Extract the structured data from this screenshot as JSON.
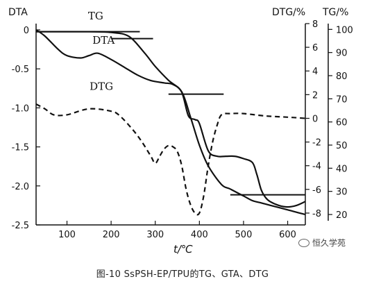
{
  "chart_data": {
    "type": "line",
    "caption": "图-10 SsPSH-EP/TPU的TG、GTA、DTG",
    "watermark": "恒久学苑",
    "xlabel": "t/℃",
    "xlim": [
      30,
      640
    ],
    "xticks": [
      100,
      200,
      300,
      400,
      500,
      600
    ],
    "y_left": {
      "label": "DTA",
      "lim": [
        -2.5,
        0.08
      ],
      "ticks": [
        0,
        -0.5,
        -1.0,
        -1.5,
        -2.0,
        -2.5
      ],
      "tick_labels": [
        "0",
        "-0.5",
        "-1.0",
        "-1.5",
        "-2.0",
        "-2.5"
      ]
    },
    "y_dtg": {
      "label": "DTG/%",
      "lim": [
        -9,
        8
      ],
      "ticks": [
        8,
        6,
        4,
        2,
        0,
        -2,
        -4,
        -6,
        -8
      ],
      "tick_labels": [
        "8",
        "6",
        "4",
        "2",
        "0",
        "-2",
        "-4",
        "-6",
        "-8"
      ]
    },
    "y_tg": {
      "label": "TG/%",
      "lim": [
        15.5,
        102.5
      ],
      "ticks": [
        100,
        90,
        80,
        70,
        60,
        50,
        40,
        30,
        20
      ],
      "tick_labels": [
        "100",
        "90",
        "80",
        "70",
        "60",
        "50",
        "40",
        "30",
        "20"
      ]
    },
    "series": [
      {
        "name": "TG",
        "axis": "tg",
        "style": "solid",
        "x": [
          30,
          150,
          200,
          240,
          275,
          300,
          330,
          360,
          380,
          400,
          420,
          450,
          470,
          500,
          520,
          540,
          560,
          600,
          640
        ],
        "y": [
          99,
          99,
          98.7,
          97,
          90,
          84,
          78,
          73,
          62,
          50,
          41,
          33,
          31,
          28,
          26,
          25,
          24,
          22,
          20
        ]
      },
      {
        "name": "DTA",
        "axis": "left",
        "style": "solid",
        "x": [
          30,
          50,
          80,
          100,
          130,
          150,
          170,
          200,
          230,
          260,
          290,
          320,
          340,
          360,
          375,
          390,
          400,
          420,
          440,
          460,
          480,
          500,
          520,
          530,
          540,
          550,
          560,
          580,
          600,
          620,
          640
        ],
        "y": [
          0,
          -0.08,
          -0.25,
          -0.33,
          -0.36,
          -0.33,
          -0.3,
          -0.38,
          -0.48,
          -0.58,
          -0.65,
          -0.68,
          -0.7,
          -0.8,
          -1.1,
          -1.15,
          -1.2,
          -1.55,
          -1.62,
          -1.62,
          -1.62,
          -1.65,
          -1.7,
          -1.85,
          -2.05,
          -2.15,
          -2.2,
          -2.25,
          -2.27,
          -2.25,
          -2.2
        ]
      },
      {
        "name": "DTG",
        "axis": "dtg",
        "style": "dashed",
        "x": [
          30,
          50,
          70,
          100,
          150,
          200,
          220,
          250,
          270,
          290,
          300,
          310,
          320,
          330,
          340,
          350,
          360,
          370,
          380,
          390,
          400,
          410,
          420,
          430,
          440,
          450,
          470,
          500,
          550,
          600,
          640
        ],
        "y": [
          1.2,
          0.8,
          0.3,
          0.3,
          0.8,
          0.6,
          0.2,
          -1.0,
          -2.0,
          -3.2,
          -3.8,
          -3.2,
          -2.6,
          -2.3,
          -2.4,
          -2.8,
          -4.0,
          -6.0,
          -7.3,
          -8.0,
          -8.0,
          -6.5,
          -4.0,
          -2.0,
          -0.6,
          0.3,
          0.4,
          0.4,
          0.2,
          0.1,
          0.0
        ]
      }
    ],
    "reference_lines": [
      {
        "x1": 30,
        "x2": 265,
        "axis": "tg",
        "y": 99
      },
      {
        "x1": 200,
        "x2": 295,
        "axis": "tg",
        "y": 96
      },
      {
        "x1": 330,
        "x2": 455,
        "axis": "tg",
        "y": 72
      },
      {
        "x1": 470,
        "x2": 640,
        "axis": "tg",
        "y": 28.5
      }
    ],
    "curve_labels": [
      {
        "text": "TG",
        "x": 165,
        "series": "tg",
        "y": 104.3
      },
      {
        "text": "DTA",
        "x": 183,
        "series": "left",
        "y": -0.18
      },
      {
        "text": "DTG",
        "x": 178,
        "series": "dtg",
        "y": 2.4
      }
    ]
  }
}
